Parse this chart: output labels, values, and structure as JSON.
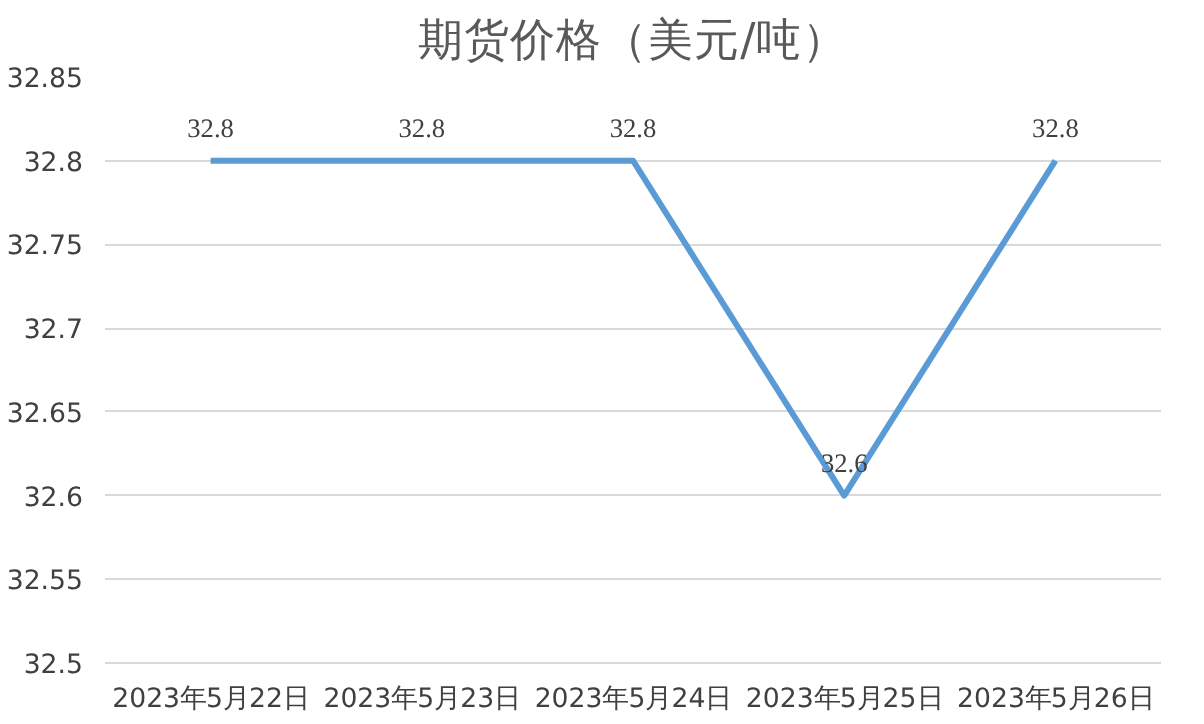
{
  "chart_data": {
    "type": "line",
    "title": "期货价格（美元/吨）",
    "categories": [
      "2023年5月22日",
      "2023年5月23日",
      "2023年5月24日",
      "2023年5月25日",
      "2023年5月26日"
    ],
    "series": [
      {
        "color": "#5b9bd5",
        "values": [
          32.8,
          32.8,
          32.8,
          32.6,
          32.8
        ]
      }
    ],
    "ylim": [
      32.5,
      32.85
    ],
    "yticks": [
      32.5,
      32.55,
      32.6,
      32.65,
      32.7,
      32.75,
      32.8,
      32.85
    ],
    "grid": "y",
    "data_labels": true,
    "marker": "none",
    "line_style": "solid"
  }
}
